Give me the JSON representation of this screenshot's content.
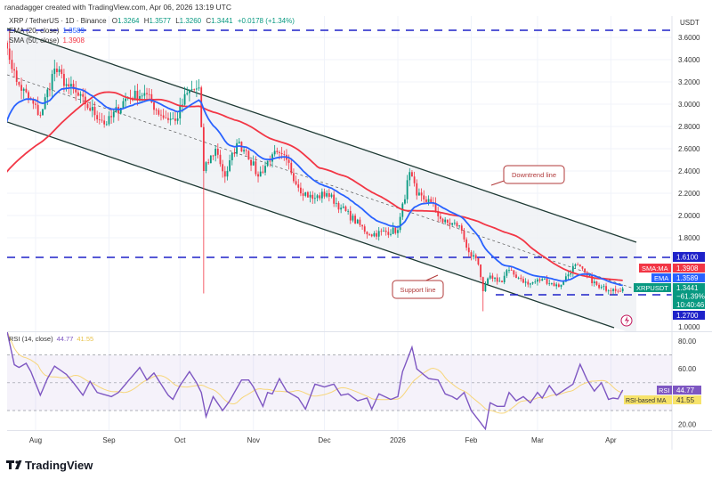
{
  "attribution": "ranadagger created with TradingView.com, Apr 06, 2026 13:19 UTC",
  "legend": {
    "symbol": "XRP / TetherUS · 1D · Binance",
    "open_label": "O",
    "open": "1.3264",
    "high_label": "H",
    "high": "1.3577",
    "low_label": "L",
    "low": "1.3260",
    "close_label": "C",
    "close": "1.3441",
    "change": "+0.0178 (+1.34%)",
    "ema_label": "EMA (20, close)",
    "ema_value": "1.3589",
    "sma_label": "SMA (50, close)",
    "sma_value": "1.3908",
    "rsi_label": "RSI (14, close)",
    "rsi_value": "44.77",
    "rsi_ma_value": "41.55"
  },
  "price_axis": {
    "currency": "USDT",
    "ticks": [
      "3.6000",
      "3.4000",
      "3.2000",
      "3.0000",
      "2.8000",
      "2.6000",
      "2.4000",
      "2.2000",
      "2.0000",
      "1.8000",
      "1.0000"
    ],
    "tick_values": [
      3.6,
      3.4,
      3.2,
      3.0,
      2.8,
      2.6,
      2.4,
      2.2,
      2.0,
      1.8,
      1.0
    ],
    "markers": {
      "level_high": "1.6100",
      "sma_tag": "SMA:MA",
      "sma": "1.3908",
      "ema_tag": "EMA",
      "ema": "1.3589",
      "symbol_tag": "XRPUSDT",
      "last": "1.3441",
      "last_change": "−61.39%",
      "countdown": "10:40:46",
      "level_low": "1.2700"
    }
  },
  "rsi_axis": {
    "ticks": [
      "80.00",
      "60.00",
      "20.00"
    ],
    "tick_values": [
      80,
      60,
      20
    ],
    "rsi_tag": "RSI",
    "rsi": "44.77",
    "ma_tag": "RSI-based MA",
    "ma": "41.55"
  },
  "time_axis": {
    "labels": [
      "Aug",
      "Sep",
      "Oct",
      "Nov",
      "Dec",
      "2026",
      "Feb",
      "Mar",
      "Apr"
    ],
    "dates": [
      "2025-08-01",
      "2025-09-01",
      "2025-10-01",
      "2025-11-01",
      "2025-12-01",
      "2026-01-01",
      "2026-02-01",
      "2026-03-01",
      "2026-04-01"
    ]
  },
  "annotations": {
    "downtrend": "Downtrend line",
    "support": "Support line"
  },
  "brand": "TradingView",
  "colors": {
    "up": "#089981",
    "down": "#f23645",
    "ema": "#2962ff",
    "sma": "#f23645",
    "level": "#1e22c9",
    "channel": "#1e3a34",
    "rsi": "#7e57c2",
    "rsi_ma": "#f7d67a"
  },
  "chart_data": [
    {
      "type": "candlestick",
      "title": "XRP / TetherUS · 1D · Binance",
      "ylabel": "USDT",
      "ylim": [
        1.0,
        3.7
      ],
      "scale": "linear",
      "grid": true,
      "close_waypoints": {
        "dates": [
          "2025-07-20",
          "2025-07-24",
          "2025-08-03",
          "2025-08-09",
          "2025-08-14",
          "2025-08-22",
          "2025-08-31",
          "2025-09-08",
          "2025-09-16",
          "2025-09-23",
          "2025-09-29",
          "2025-10-04",
          "2025-10-09",
          "2025-10-11",
          "2025-10-16",
          "2025-10-20",
          "2025-10-25",
          "2025-10-29",
          "2025-11-03",
          "2025-11-09",
          "2025-11-15",
          "2025-11-20",
          "2025-11-26",
          "2025-12-02",
          "2025-12-08",
          "2025-12-20",
          "2026-01-01",
          "2026-01-06",
          "2026-01-09",
          "2026-01-15",
          "2026-01-20",
          "2026-01-27",
          "2026-01-31",
          "2026-02-04",
          "2026-02-06",
          "2026-02-09",
          "2026-02-14",
          "2026-02-16",
          "2026-02-22",
          "2026-02-25",
          "2026-03-03",
          "2026-03-10",
          "2026-03-17",
          "2026-03-22",
          "2026-03-27",
          "2026-04-02",
          "2026-04-06"
        ],
        "values": [
          3.5,
          3.2,
          2.9,
          3.32,
          3.18,
          3.0,
          2.82,
          3.05,
          3.1,
          2.9,
          2.85,
          3.1,
          3.15,
          2.4,
          2.6,
          2.35,
          2.65,
          2.58,
          2.35,
          2.55,
          2.5,
          2.25,
          2.15,
          2.2,
          2.07,
          1.83,
          1.87,
          2.39,
          2.18,
          2.12,
          1.94,
          1.91,
          1.67,
          1.56,
          1.32,
          1.46,
          1.4,
          1.51,
          1.43,
          1.38,
          1.43,
          1.36,
          1.56,
          1.46,
          1.35,
          1.34,
          1.3441
        ]
      },
      "notable_wicks": [
        {
          "date": "2025-07-21",
          "high": 3.66
        },
        {
          "date": "2025-10-11",
          "low": 1.3
        },
        {
          "date": "2026-02-06",
          "low": 1.14
        }
      ],
      "overlays": [
        {
          "name": "EMA (20, close)",
          "last": 1.3589
        },
        {
          "name": "SMA (50, close)",
          "last": 1.3908
        }
      ],
      "horizontal_levels": [
        3.66,
        1.61,
        1.27
      ],
      "channel": {
        "upper": [
          {
            "date": "2025-07-18",
            "price": 3.6
          },
          {
            "date": "2026-04-07",
            "price": 1.75
          }
        ],
        "lower": [
          {
            "date": "2025-07-18",
            "price": 2.78
          },
          {
            "date": "2026-03-28",
            "price": 0.98
          }
        ]
      }
    },
    {
      "type": "line",
      "title": "RSI (14, close)",
      "ylim": [
        15,
        90
      ],
      "bands": [
        30,
        50,
        70
      ],
      "series": [
        {
          "name": "RSI",
          "last": 44.77,
          "dates": [
            "2025-07-20",
            "2025-07-23",
            "2025-07-25",
            "2025-07-28",
            "2025-07-30",
            "2025-08-03",
            "2025-08-06",
            "2025-08-09",
            "2025-08-14",
            "2025-08-17",
            "2025-08-21",
            "2025-08-24",
            "2025-08-27",
            "2025-09-02",
            "2025-09-05",
            "2025-09-10",
            "2025-09-14",
            "2025-09-17",
            "2025-09-20",
            "2025-09-23",
            "2025-09-26",
            "2025-09-28",
            "2025-10-01",
            "2025-10-05",
            "2025-10-08",
            "2025-10-10",
            "2025-10-12",
            "2025-10-15",
            "2025-10-19",
            "2025-10-22",
            "2025-10-27",
            "2025-10-30",
            "2025-11-01",
            "2025-11-05",
            "2025-11-07",
            "2025-11-09",
            "2025-11-12",
            "2025-11-15",
            "2025-11-20",
            "2025-11-23",
            "2025-11-27",
            "2025-12-01",
            "2025-12-05",
            "2025-12-08",
            "2025-12-11",
            "2025-12-15",
            "2025-12-19",
            "2025-12-21",
            "2025-12-24",
            "2025-12-29",
            "2026-01-01",
            "2026-01-03",
            "2026-01-07",
            "2026-01-09",
            "2026-01-14",
            "2026-01-18",
            "2026-01-21",
            "2026-01-24",
            "2026-01-26",
            "2026-01-29",
            "2026-02-01",
            "2026-02-03",
            "2026-02-07",
            "2026-02-09",
            "2026-02-12",
            "2026-02-15",
            "2026-02-17",
            "2026-02-20",
            "2026-02-23",
            "2026-02-26",
            "2026-03-01",
            "2026-03-03",
            "2026-03-06",
            "2026-03-09",
            "2026-03-13",
            "2026-03-16",
            "2026-03-19",
            "2026-03-22",
            "2026-03-25",
            "2026-03-28",
            "2026-03-31",
            "2026-04-02",
            "2026-04-04",
            "2026-04-06"
          ],
          "values": [
            86.7,
            63,
            61,
            64,
            58,
            41,
            53,
            62,
            56,
            50,
            41,
            51,
            43,
            40,
            43,
            53,
            61,
            52,
            57,
            49,
            41,
            38,
            48,
            58,
            50,
            43,
            25.6,
            40,
            30,
            37,
            52,
            52,
            47,
            33,
            43,
            42,
            53,
            44,
            39,
            31,
            49,
            47,
            49,
            41,
            42,
            37,
            39,
            31,
            42,
            38,
            40,
            58,
            75.6,
            60,
            53,
            52,
            42,
            40,
            38,
            43,
            30,
            25.6,
            16.7,
            35.6,
            33,
            33,
            43,
            37,
            40,
            35.6,
            43,
            39,
            48,
            41,
            45.6,
            49,
            63.3,
            52,
            44,
            50,
            38,
            39,
            38.4,
            44.77
          ]
        },
        {
          "name": "RSI-based MA",
          "last": 41.55
        }
      ]
    }
  ]
}
